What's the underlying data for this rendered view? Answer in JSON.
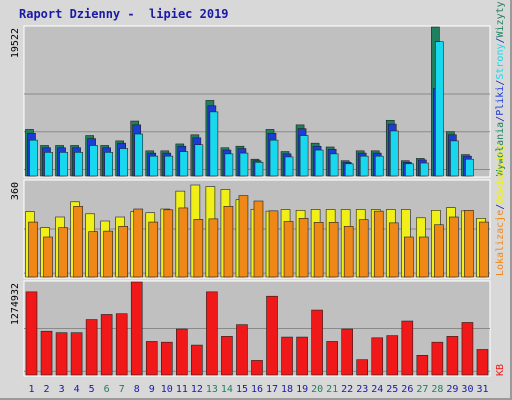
{
  "title": "Raport Dzienny -  lipiec 2019",
  "colors": {
    "visits": "#1f7f5f",
    "pages": "#1c3cd8",
    "files": "#18d8f0",
    "hits": "#f0f018",
    "sites": "#f08818",
    "kb": "#f01818",
    "weekend_day_label": "#1f7f5f",
    "day_label": "#1a1aa6",
    "panel_bg": "#c0c0c0",
    "grid": "#8a8a8a"
  },
  "chart_data": [
    {
      "type": "bar",
      "panel": "top",
      "y_max_label": "19522",
      "ylim": [
        0,
        19522
      ],
      "right_legend": [
        "Wywołania",
        "/",
        "Pliki",
        "/",
        "Strony",
        "/",
        "Wizyty"
      ],
      "categories": [
        "1",
        "2",
        "3",
        "4",
        "5",
        "6",
        "7",
        "8",
        "9",
        "10",
        "11",
        "12",
        "13",
        "14",
        "15",
        "16",
        "17",
        "18",
        "19",
        "20",
        "21",
        "22",
        "23",
        "24",
        "25",
        "26",
        "27",
        "28",
        "29",
        "30",
        "31"
      ],
      "series": [
        {
          "name": "Wywołania",
          "key": "hits",
          "values": [
            6100,
            4000,
            4000,
            4000,
            5300,
            4000,
            4600,
            7200,
            3300,
            3300,
            4200,
            5400,
            9900,
            3700,
            3900,
            2200,
            6100,
            3200,
            6700,
            4300,
            3800,
            2000,
            3300,
            3300,
            7300,
            2000,
            2300,
            19522,
            5800,
            2800,
            0
          ]
        },
        {
          "name": "Pliki",
          "key": "files",
          "values": [
            4700,
            3100,
            3100,
            3100,
            4000,
            3100,
            3600,
            5500,
            2600,
            2600,
            3200,
            4100,
            8400,
            2900,
            3000,
            1800,
            4700,
            2500,
            5300,
            3400,
            2900,
            1600,
            2600,
            2600,
            5900,
            1600,
            1700,
            17600,
            4600,
            2200,
            0
          ]
        },
        {
          "name": "Strony",
          "key": "pages",
          "values": [
            5600,
            3700,
            3700,
            3700,
            4900,
            3700,
            4300,
            6700,
            3000,
            3000,
            3900,
            5000,
            9200,
            3400,
            3600,
            2000,
            5600,
            2900,
            6200,
            3900,
            3500,
            1800,
            3000,
            3000,
            6800,
            1800,
            2100,
            11500,
            5400,
            2600,
            0
          ]
        },
        {
          "name": "Wizyty",
          "key": "visits",
          "values": [
            6100,
            4000,
            4000,
            4000,
            5300,
            4000,
            4600,
            7200,
            3300,
            3300,
            4200,
            5400,
            9900,
            3700,
            3900,
            2200,
            6100,
            3200,
            6700,
            4300,
            3800,
            2000,
            3300,
            3300,
            7300,
            2000,
            2300,
            19522,
            5800,
            2800,
            0
          ]
        }
      ]
    },
    {
      "type": "bar",
      "panel": "middle",
      "y_max_label": "360",
      "ylim": [
        0,
        360
      ],
      "right_legend": [
        "Lokalizacje",
        "/",
        "Odwiedziny"
      ],
      "categories": [
        "1",
        "2",
        "3",
        "4",
        "5",
        "6",
        "7",
        "8",
        "9",
        "10",
        "11",
        "12",
        "13",
        "14",
        "15",
        "16",
        "17",
        "18",
        "19",
        "20",
        "21",
        "22",
        "23",
        "24",
        "25",
        "26",
        "27",
        "28",
        "29",
        "30",
        "31"
      ],
      "series": [
        {
          "name": "Odwiedziny",
          "key": "hits",
          "values": [
            245,
            185,
            225,
            282,
            237,
            210,
            225,
            245,
            241,
            255,
            322,
            345,
            339,
            328,
            290,
            254,
            247,
            253,
            250,
            253,
            253,
            253,
            253,
            253,
            253,
            253,
            222,
            250,
            260,
            248,
            220
          ]
        },
        {
          "name": "Lokalizacje",
          "key": "sites",
          "values": [
            206,
            150,
            185,
            265,
            170,
            172,
            190,
            255,
            206,
            252,
            259,
            216,
            218,
            265,
            305,
            285,
            248,
            208,
            220,
            205,
            205,
            190,
            215,
            247,
            203,
            150,
            150,
            196,
            225,
            250,
            206
          ]
        }
      ]
    },
    {
      "type": "bar",
      "panel": "bottom",
      "y_max_label": "1274932",
      "ylim": [
        0,
        1274932
      ],
      "right_legend": [
        "KB"
      ],
      "categories": [
        "1",
        "2",
        "3",
        "4",
        "5",
        "6",
        "7",
        "8",
        "9",
        "10",
        "11",
        "12",
        "13",
        "14",
        "15",
        "16",
        "17",
        "18",
        "19",
        "20",
        "21",
        "22",
        "23",
        "24",
        "25",
        "26",
        "27",
        "28",
        "29",
        "30",
        "31"
      ],
      "series": [
        {
          "name": "KB",
          "key": "kb",
          "values": [
            1140000,
            600000,
            580000,
            580000,
            760000,
            830000,
            840000,
            1274932,
            460000,
            450000,
            630000,
            410000,
            1140000,
            530000,
            690000,
            200000,
            1080000,
            520000,
            520000,
            890000,
            460000,
            630000,
            210000,
            510000,
            540000,
            740000,
            270000,
            450000,
            530000,
            720000,
            350000
          ]
        }
      ]
    }
  ],
  "x_labels": [
    {
      "text": "1",
      "weekend": false
    },
    {
      "text": "2",
      "weekend": false
    },
    {
      "text": "3",
      "weekend": false
    },
    {
      "text": "4",
      "weekend": false
    },
    {
      "text": "5",
      "weekend": false
    },
    {
      "text": "6",
      "weekend": true
    },
    {
      "text": "7",
      "weekend": true
    },
    {
      "text": "8",
      "weekend": false
    },
    {
      "text": "9",
      "weekend": false
    },
    {
      "text": "10",
      "weekend": false
    },
    {
      "text": "11",
      "weekend": false
    },
    {
      "text": "12",
      "weekend": false
    },
    {
      "text": "13",
      "weekend": true
    },
    {
      "text": "14",
      "weekend": true
    },
    {
      "text": "15",
      "weekend": false
    },
    {
      "text": "16",
      "weekend": false
    },
    {
      "text": "17",
      "weekend": false
    },
    {
      "text": "18",
      "weekend": false
    },
    {
      "text": "19",
      "weekend": false
    },
    {
      "text": "20",
      "weekend": true
    },
    {
      "text": "21",
      "weekend": true
    },
    {
      "text": "22",
      "weekend": false
    },
    {
      "text": "23",
      "weekend": false
    },
    {
      "text": "24",
      "weekend": false
    },
    {
      "text": "25",
      "weekend": false
    },
    {
      "text": "26",
      "weekend": false
    },
    {
      "text": "27",
      "weekend": true
    },
    {
      "text": "28",
      "weekend": true
    },
    {
      "text": "29",
      "weekend": false
    },
    {
      "text": "30",
      "weekend": false
    },
    {
      "text": "31",
      "weekend": false
    }
  ]
}
